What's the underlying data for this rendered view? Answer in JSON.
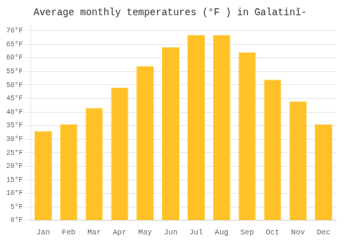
{
  "chart_data": {
    "type": "bar",
    "title": "Average monthly temperatures (°F ) in Galatinĭ-",
    "categories": [
      "Jan",
      "Feb",
      "Mar",
      "Apr",
      "May",
      "Jun",
      "Jul",
      "Aug",
      "Sep",
      "Oct",
      "Nov",
      "Dec"
    ],
    "values": [
      33,
      35.5,
      41.5,
      49,
      57,
      64,
      68.5,
      68.5,
      62,
      52,
      44,
      35.5
    ],
    "color": "#FFC125",
    "ylim": [
      0,
      72
    ],
    "yticks": [
      {
        "value": 0,
        "label": "0°F"
      },
      {
        "value": 5,
        "label": "5°F"
      },
      {
        "value": 10,
        "label": "10°F"
      },
      {
        "value": 15,
        "label": "15°F"
      },
      {
        "value": 20,
        "label": "20°F"
      },
      {
        "value": 25,
        "label": "25°F"
      },
      {
        "value": 30,
        "label": "30°F"
      },
      {
        "value": 35,
        "label": "35°F"
      },
      {
        "value": 40,
        "label": "40°F"
      },
      {
        "value": 45,
        "label": "45°F"
      },
      {
        "value": 50,
        "label": "50°F"
      },
      {
        "value": 55,
        "label": "55°F"
      },
      {
        "value": 60,
        "label": "60°F"
      },
      {
        "value": 65,
        "label": "65°F"
      },
      {
        "value": 70,
        "label": "70°F"
      }
    ],
    "grid": true
  }
}
